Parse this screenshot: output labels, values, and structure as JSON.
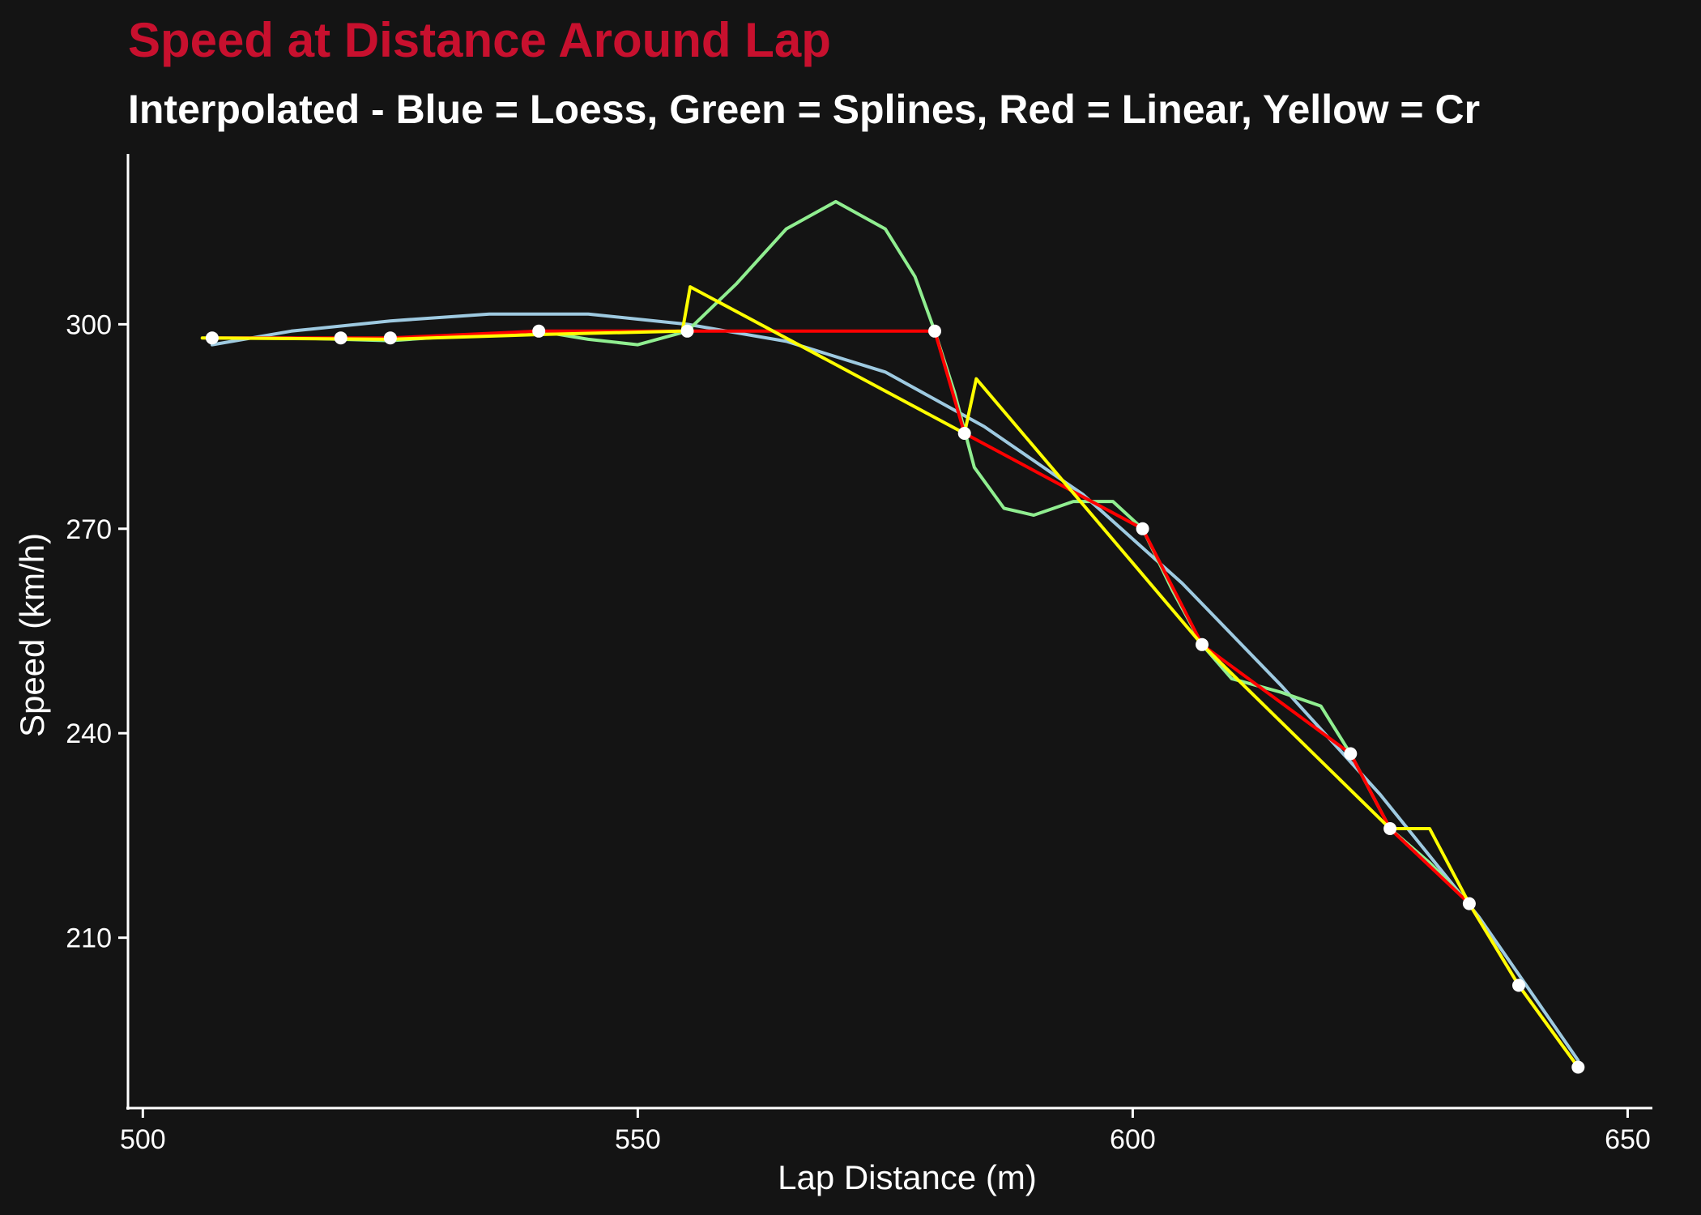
{
  "chart_data": {
    "type": "line",
    "title": "Speed at Distance Around Lap",
    "subtitle": "Interpolated - Blue = Loess, Green = Splines, Red = Linear, Yellow = Cr",
    "xlabel": "Lap Distance (m)",
    "ylabel": "Speed (km/h)",
    "xlim": [
      498.5,
      652.5
    ],
    "ylim": [
      185,
      325
    ],
    "x_ticks": [
      500,
      550,
      600,
      650
    ],
    "y_ticks": [
      210,
      240,
      270,
      300
    ],
    "x_tick_labels": [
      "500",
      "550",
      "600",
      "650"
    ],
    "y_tick_labels": [
      "210",
      "240",
      "270",
      "300"
    ],
    "grid": false,
    "colors": {
      "background": "#141414",
      "title": "#c8102e",
      "text": "#ffffff",
      "loess": "#9ecae1",
      "splines": "#90ee90",
      "linear": "#ff0000",
      "cr": "#ffff00",
      "points": "#ffffff"
    },
    "points": {
      "x": [
        507,
        520,
        525,
        540,
        555,
        580,
        583,
        601,
        607,
        622,
        626,
        634,
        639,
        645
      ],
      "y": [
        298,
        298,
        298,
        299,
        299,
        299,
        284,
        270,
        253,
        237,
        226,
        215,
        203,
        191
      ]
    },
    "series": [
      {
        "key": "loess",
        "x": [
          507,
          515,
          525,
          535,
          545,
          555,
          565,
          575,
          585,
          595,
          605,
          615,
          625,
          635,
          645
        ],
        "y": [
          297,
          299,
          300.5,
          301.5,
          301.5,
          300,
          297.5,
          293,
          285,
          275,
          262,
          247,
          231,
          213,
          192
        ]
      },
      {
        "key": "splines",
        "x": [
          507,
          515,
          525,
          532,
          540,
          545,
          550,
          555,
          560,
          565,
          570,
          575,
          578,
          580,
          582,
          584,
          587,
          590,
          594,
          598,
          601,
          604,
          607,
          610,
          615,
          619,
          622,
          626,
          630,
          634,
          639,
          645
        ],
        "y": [
          298,
          298,
          297.6,
          298.3,
          299,
          297.8,
          297,
          299,
          306,
          314,
          318,
          314,
          307,
          299,
          290,
          279,
          273,
          272,
          274,
          274,
          270,
          261,
          253,
          248,
          246,
          244,
          237,
          226,
          221,
          215,
          203,
          191
        ]
      },
      {
        "key": "linear",
        "x": [
          507,
          520,
          525,
          540,
          555,
          580,
          583,
          601,
          607,
          622,
          626,
          634,
          639,
          645
        ],
        "y": [
          298,
          298,
          298,
          299,
          299,
          299,
          284,
          270,
          253,
          237,
          226,
          215,
          203,
          191
        ]
      },
      {
        "key": "cr",
        "x": [
          506,
          525,
          540,
          554.5,
          555.3,
          583,
          584.2,
          607,
          626,
          630,
          634,
          639,
          645
        ],
        "y": [
          298,
          297.8,
          298.5,
          299,
          305.5,
          284,
          292,
          253,
          226,
          226,
          215,
          203,
          191
        ]
      }
    ]
  }
}
